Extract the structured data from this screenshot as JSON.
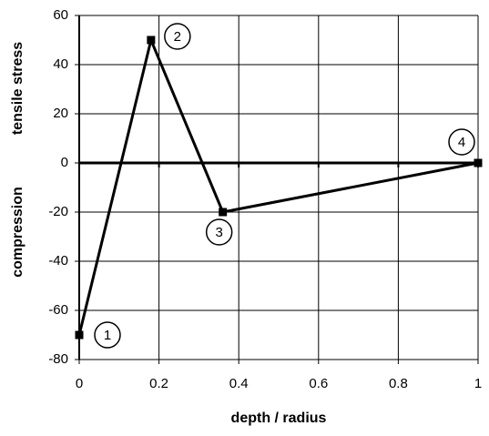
{
  "chart_data": {
    "type": "line",
    "x": [
      0,
      0.18,
      0.36,
      1
    ],
    "series": [
      {
        "color": "#000000",
        "values": [
          -70,
          50,
          -20,
          0
        ]
      }
    ],
    "point_labels": [
      "1",
      "2",
      "3",
      "4"
    ],
    "x_label": "depth / radius",
    "y_label_upper": "tensile stress",
    "y_label_lower": "compression",
    "xlim": [
      0,
      1
    ],
    "xticks": [
      0,
      0.2,
      0.4,
      0.6,
      0.8,
      1
    ],
    "ylim": [
      -80,
      60
    ],
    "yticks": [
      -80,
      -60,
      -40,
      -20,
      0,
      20,
      40,
      60
    ],
    "grid": true
  }
}
